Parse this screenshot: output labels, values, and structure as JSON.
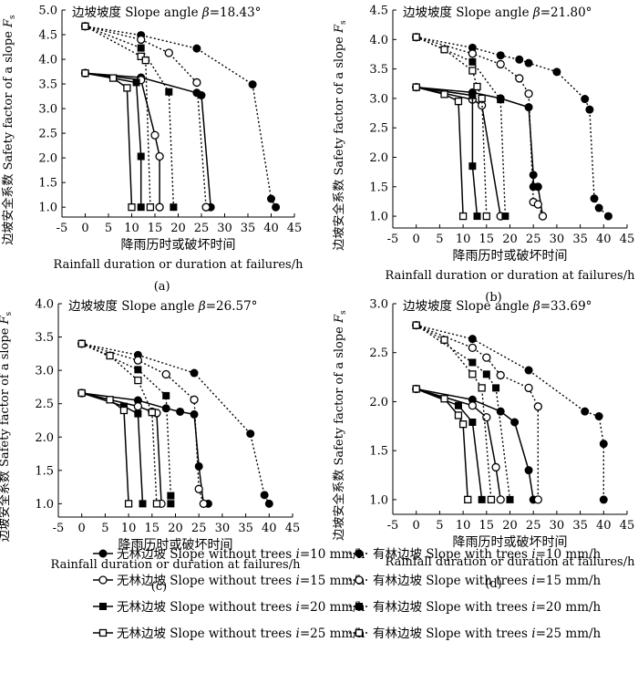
{
  "figure": {
    "xlabel_cn": "降雨历时或破坏时间",
    "xlabel_en": "Rainfall duration or duration at failures/h",
    "ylabel": "边坡安全系数 Safety factor of a slope F",
    "ylabel_sub": "s"
  },
  "legend": {
    "items": [
      {
        "label": "无林边坡 Slope without trees i=10 mm/h",
        "marker": "circle-filled",
        "dash": "solid"
      },
      {
        "label": "有林边坡 Slope with trees i=10 mm/h",
        "marker": "circle-filled",
        "dash": "dotted"
      },
      {
        "label": "无林边坡 Slope without trees i=15 mm/h",
        "marker": "circle-open",
        "dash": "solid"
      },
      {
        "label": "有林边坡 Slope with trees i=15 mm/h",
        "marker": "circle-open",
        "dash": "dotted"
      },
      {
        "label": "无林边坡 Slope without trees i=20 mm/h",
        "marker": "square-filled",
        "dash": "solid"
      },
      {
        "label": "有林边坡 Slope with trees i=20 mm/h",
        "marker": "square-filled",
        "dash": "dotted"
      },
      {
        "label": "无林边坡 Slope without trees i=25 mm/h",
        "marker": "square-open",
        "dash": "solid"
      },
      {
        "label": "有林边坡 Slope with trees i=25 mm/h",
        "marker": "square-open",
        "dash": "dotted"
      }
    ]
  },
  "chart_data": [
    {
      "type": "line",
      "panel_label": "(a)",
      "title": "边坡坡度 Slope angle β=18.43°",
      "xlim": [
        -5,
        45
      ],
      "ylim": [
        0.8,
        5.0
      ],
      "xticks": [
        -5,
        0,
        5,
        10,
        15,
        20,
        25,
        30,
        35,
        40,
        45
      ],
      "yticks": [
        1.0,
        1.5,
        2.0,
        2.5,
        3.0,
        3.5,
        4.0,
        4.5,
        5.0
      ],
      "series": [
        {
          "name": "Slope without trees i=10 mm/h",
          "marker": "circle-filled",
          "dash": "solid",
          "x": [
            0,
            12,
            24,
            25,
            27
          ],
          "y": [
            3.72,
            3.63,
            3.32,
            3.27,
            1.0
          ]
        },
        {
          "name": "Slope without trees i=15 mm/h",
          "marker": "circle-open",
          "dash": "solid",
          "x": [
            0,
            12,
            15,
            16,
            16
          ],
          "y": [
            3.72,
            3.58,
            2.46,
            2.03,
            1.0
          ]
        },
        {
          "name": "Slope without trees i=20 mm/h",
          "marker": "square-filled",
          "dash": "solid",
          "x": [
            0,
            11,
            12,
            12
          ],
          "y": [
            3.72,
            3.53,
            2.03,
            1.0
          ]
        },
        {
          "name": "Slope without trees i=25 mm/h",
          "marker": "square-open",
          "dash": "solid",
          "x": [
            0,
            6,
            9,
            10
          ],
          "y": [
            3.72,
            3.62,
            3.42,
            1.0
          ]
        },
        {
          "name": "Slope with trees i=10 mm/h",
          "marker": "circle-filled",
          "dash": "dotted",
          "x": [
            0,
            12,
            24,
            36,
            40,
            41
          ],
          "y": [
            4.67,
            4.49,
            4.22,
            3.49,
            1.17,
            1.0
          ]
        },
        {
          "name": "Slope with trees i=15 mm/h",
          "marker": "circle-open",
          "dash": "dotted",
          "x": [
            0,
            12,
            18,
            24,
            26
          ],
          "y": [
            4.67,
            4.4,
            4.13,
            3.53,
            1.0
          ]
        },
        {
          "name": "Slope with trees i=20 mm/h",
          "marker": "square-filled",
          "dash": "dotted",
          "x": [
            0,
            12,
            18,
            19
          ],
          "y": [
            4.67,
            4.23,
            3.34,
            1.0
          ]
        },
        {
          "name": "Slope with trees i=25 mm/h",
          "marker": "square-open",
          "dash": "dotted",
          "x": [
            0,
            12,
            13,
            14
          ],
          "y": [
            4.67,
            4.06,
            3.98,
            1.0
          ]
        }
      ]
    },
    {
      "type": "line",
      "panel_label": "(b)",
      "title": "边坡坡度 Slope angle β=21.80°",
      "xlim": [
        -5,
        45
      ],
      "ylim": [
        0.8,
        4.5
      ],
      "xticks": [
        -5,
        0,
        5,
        10,
        15,
        20,
        25,
        30,
        35,
        40,
        45
      ],
      "yticks": [
        1.0,
        1.5,
        2.0,
        2.5,
        3.0,
        3.5,
        4.0,
        4.5
      ],
      "series": [
        {
          "name": "Slope without trees i=10 mm/h",
          "marker": "circle-filled",
          "dash": "solid",
          "x": [
            0,
            12,
            18,
            24,
            25,
            25,
            26,
            27
          ],
          "y": [
            3.19,
            3.1,
            3.0,
            2.85,
            1.7,
            1.5,
            1.5,
            1.0
          ]
        },
        {
          "name": "Slope without trees i=15 mm/h",
          "marker": "circle-open",
          "dash": "solid",
          "x": [
            0,
            12,
            14,
            18
          ],
          "y": [
            3.19,
            2.98,
            2.88,
            1.0
          ]
        },
        {
          "name": "Slope without trees i=20 mm/h",
          "marker": "square-filled",
          "dash": "solid",
          "x": [
            0,
            12,
            12,
            13
          ],
          "y": [
            3.19,
            3.05,
            1.85,
            1.0
          ]
        },
        {
          "name": "Slope without trees i=25 mm/h",
          "marker": "square-open",
          "dash": "solid",
          "x": [
            0,
            6,
            9,
            10
          ],
          "y": [
            3.19,
            3.07,
            2.95,
            1.0
          ]
        },
        {
          "name": "Slope with trees i=10 mm/h",
          "marker": "circle-filled",
          "dash": "dotted",
          "x": [
            0,
            12,
            18,
            22,
            24,
            30,
            36,
            37,
            38,
            39,
            41
          ],
          "y": [
            4.04,
            3.86,
            3.73,
            3.66,
            3.6,
            3.45,
            2.99,
            2.81,
            1.3,
            1.14,
            1.0
          ]
        },
        {
          "name": "Slope with trees i=15 mm/h",
          "marker": "circle-open",
          "dash": "dotted",
          "x": [
            0,
            12,
            18,
            22,
            24,
            25,
            26,
            27
          ],
          "y": [
            4.04,
            3.76,
            3.58,
            3.34,
            3.08,
            1.24,
            1.2,
            1.0
          ]
        },
        {
          "name": "Slope with trees i=20 mm/h",
          "marker": "square-filled",
          "dash": "dotted",
          "x": [
            0,
            12,
            18,
            19
          ],
          "y": [
            4.04,
            3.62,
            2.98,
            1.0
          ]
        },
        {
          "name": "Slope with trees i=25 mm/h",
          "marker": "square-open",
          "dash": "dotted",
          "x": [
            0,
            6,
            12,
            13,
            14,
            15
          ],
          "y": [
            4.04,
            3.83,
            3.47,
            3.2,
            3.0,
            1.0
          ]
        }
      ]
    },
    {
      "type": "line",
      "panel_label": "(c)",
      "title": "边坡坡度 Slope angle β=26.57°",
      "xlim": [
        -5,
        45
      ],
      "ylim": [
        0.8,
        4.0
      ],
      "xticks": [
        -5,
        0,
        5,
        10,
        15,
        20,
        25,
        30,
        35,
        40,
        45
      ],
      "yticks": [
        1.0,
        1.5,
        2.0,
        2.5,
        3.0,
        3.5,
        4.0
      ],
      "series": [
        {
          "name": "Slope without trees i=10 mm/h",
          "marker": "circle-filled",
          "dash": "solid",
          "x": [
            0,
            12,
            18,
            21,
            24,
            25,
            26,
            27
          ],
          "y": [
            2.66,
            2.55,
            2.43,
            2.38,
            2.34,
            1.56,
            1.0,
            1.0
          ]
        },
        {
          "name": "Slope without trees i=15 mm/h",
          "marker": "circle-open",
          "dash": "solid",
          "x": [
            0,
            12,
            15,
            16,
            17
          ],
          "y": [
            2.66,
            2.46,
            2.38,
            2.36,
            1.0
          ]
        },
        {
          "name": "Slope without trees i=20 mm/h",
          "marker": "square-filled",
          "dash": "solid",
          "x": [
            0,
            9,
            12,
            13
          ],
          "y": [
            2.66,
            2.46,
            2.35,
            1.0
          ]
        },
        {
          "name": "Slope without trees i=25 mm/h",
          "marker": "square-open",
          "dash": "solid",
          "x": [
            0,
            6,
            9,
            10
          ],
          "y": [
            2.66,
            2.56,
            2.4,
            1.0
          ]
        },
        {
          "name": "Slope with trees i=10 mm/h",
          "marker": "circle-filled",
          "dash": "dotted",
          "x": [
            0,
            12,
            24,
            36,
            39,
            40
          ],
          "y": [
            3.4,
            3.23,
            2.96,
            2.05,
            1.13,
            1.0
          ]
        },
        {
          "name": "Slope with trees i=15 mm/h",
          "marker": "circle-open",
          "dash": "dotted",
          "x": [
            0,
            12,
            18,
            24,
            25,
            26
          ],
          "y": [
            3.4,
            3.15,
            2.94,
            2.56,
            1.22,
            1.0
          ]
        },
        {
          "name": "Slope with trees i=20 mm/h",
          "marker": "square-filled",
          "dash": "dotted",
          "x": [
            0,
            12,
            18,
            19,
            19
          ],
          "y": [
            3.4,
            3.01,
            2.62,
            1.12,
            1.0
          ]
        },
        {
          "name": "Slope with trees i=25 mm/h",
          "marker": "square-open",
          "dash": "dotted",
          "x": [
            0,
            6,
            12,
            15,
            16
          ],
          "y": [
            3.4,
            3.22,
            2.85,
            2.37,
            1.0
          ]
        }
      ]
    },
    {
      "type": "line",
      "panel_label": "(d)",
      "title": "边坡坡度 Slope angle β=33.69°",
      "xlim": [
        -5,
        45
      ],
      "ylim": [
        0.85,
        3.0
      ],
      "xticks": [
        -5,
        0,
        5,
        10,
        15,
        20,
        25,
        30,
        35,
        40,
        45
      ],
      "yticks": [
        1.0,
        1.5,
        2.0,
        2.5,
        3.0
      ],
      "series": [
        {
          "name": "Slope without trees i=10 mm/h",
          "marker": "circle-filled",
          "dash": "solid",
          "x": [
            0,
            12,
            18,
            21,
            24,
            25
          ],
          "y": [
            2.13,
            2.02,
            1.9,
            1.79,
            1.3,
            1.0
          ]
        },
        {
          "name": "Slope without trees i=15 mm/h",
          "marker": "circle-open",
          "dash": "solid",
          "x": [
            0,
            12,
            15,
            17,
            18
          ],
          "y": [
            2.13,
            1.96,
            1.84,
            1.33,
            1.0
          ]
        },
        {
          "name": "Slope without trees i=20 mm/h",
          "marker": "square-filled",
          "dash": "solid",
          "x": [
            0,
            9,
            12,
            14
          ],
          "y": [
            2.13,
            1.96,
            1.79,
            1.0
          ]
        },
        {
          "name": "Slope without trees i=25 mm/h",
          "marker": "square-open",
          "dash": "solid",
          "x": [
            0,
            6,
            9,
            10,
            11
          ],
          "y": [
            2.13,
            2.03,
            1.86,
            1.77,
            1.0
          ]
        },
        {
          "name": "Slope with trees i=10 mm/h",
          "marker": "circle-filled",
          "dash": "dotted",
          "x": [
            0,
            12,
            24,
            36,
            39,
            40,
            40
          ],
          "y": [
            2.78,
            2.64,
            2.32,
            1.9,
            1.85,
            1.57,
            1.0
          ]
        },
        {
          "name": "Slope with trees i=15 mm/h",
          "marker": "circle-open",
          "dash": "dotted",
          "x": [
            0,
            12,
            15,
            18,
            24,
            26,
            26
          ],
          "y": [
            2.78,
            2.55,
            2.45,
            2.27,
            2.14,
            1.95,
            1.0
          ]
        },
        {
          "name": "Slope with trees i=20 mm/h",
          "marker": "square-filled",
          "dash": "dotted",
          "x": [
            0,
            12,
            15,
            17,
            20
          ],
          "y": [
            2.78,
            2.4,
            2.28,
            2.14,
            1.0
          ]
        },
        {
          "name": "Slope with trees i=25 mm/h",
          "marker": "square-open",
          "dash": "dotted",
          "x": [
            0,
            6,
            12,
            14,
            16
          ],
          "y": [
            2.78,
            2.63,
            2.28,
            2.14,
            1.0
          ]
        }
      ]
    }
  ]
}
